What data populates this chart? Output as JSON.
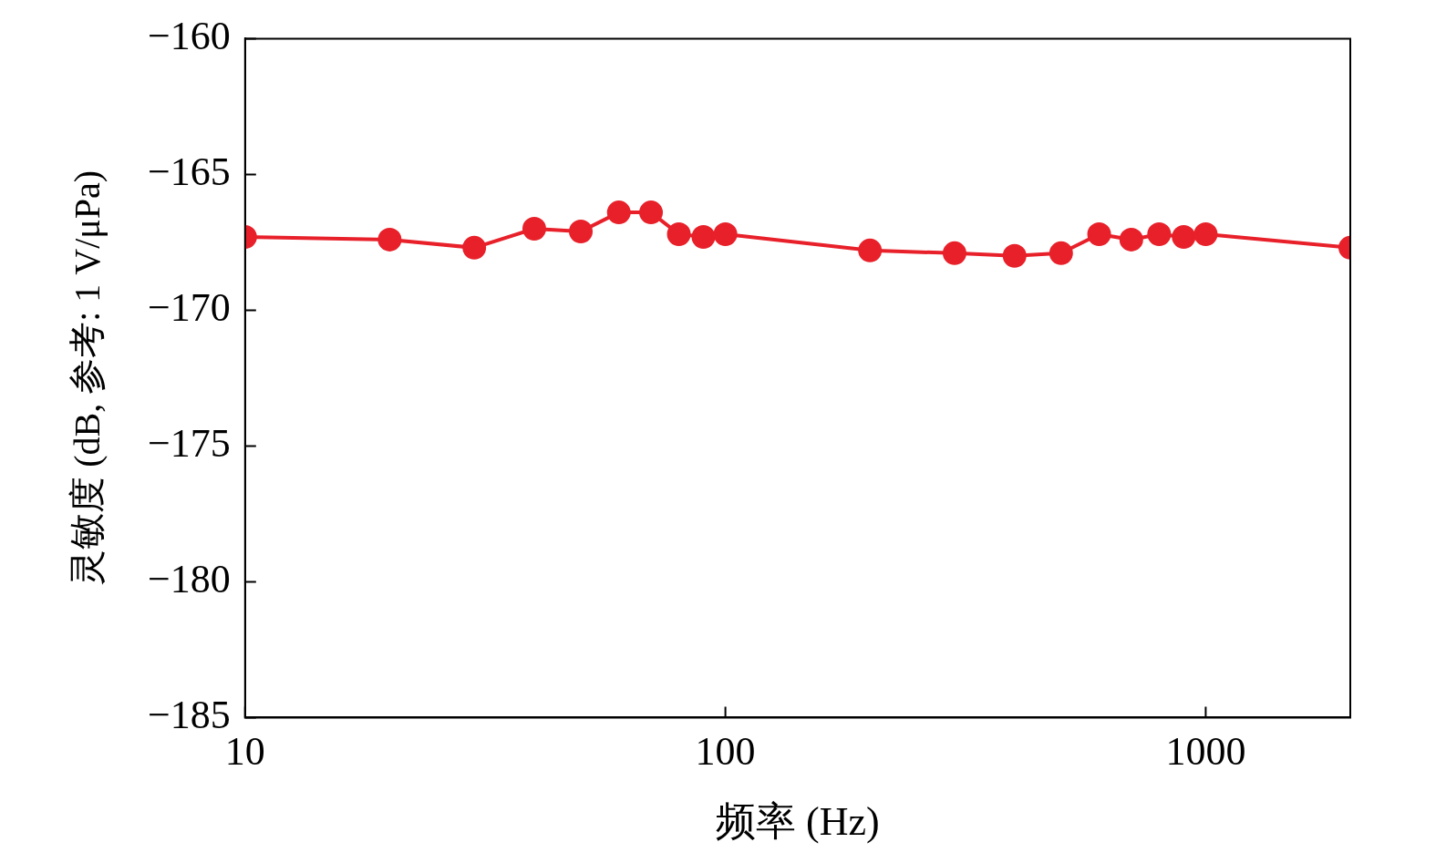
{
  "chart_data": {
    "type": "line",
    "xlabel": "频率 (Hz)",
    "ylabel": "灵敏度 (dB, 参考: 1 V/μPa)",
    "log": "x",
    "grid": false,
    "legend": false,
    "marker": "circle",
    "line_style": "solid",
    "x": [
      10,
      20,
      30,
      40,
      50,
      60,
      70,
      80,
      90,
      100,
      200,
      300,
      400,
      500,
      600,
      700,
      800,
      900,
      1000,
      2000
    ],
    "series": [
      {
        "color": "#e8202a",
        "values": [
          -167.3,
          -167.4,
          -167.7,
          -167.0,
          -167.1,
          -166.4,
          -166.4,
          -167.2,
          -167.3,
          -167.2,
          -167.8,
          -167.9,
          -168.0,
          -167.9,
          -167.2,
          -167.4,
          -167.2,
          -167.3,
          -167.2,
          -167.7
        ]
      }
    ],
    "xlim": [
      10,
      2000
    ],
    "xticks": [
      10,
      100,
      1000
    ],
    "ylim": [
      -185,
      -160
    ],
    "yticks": [
      {
        "value": -185,
        "label": "−185"
      },
      {
        "value": -180,
        "label": "−180"
      },
      {
        "value": -175,
        "label": "−175"
      },
      {
        "value": -170,
        "label": "−170"
      },
      {
        "value": -165,
        "label": "−165"
      },
      {
        "value": -160,
        "label": "−160"
      }
    ]
  }
}
